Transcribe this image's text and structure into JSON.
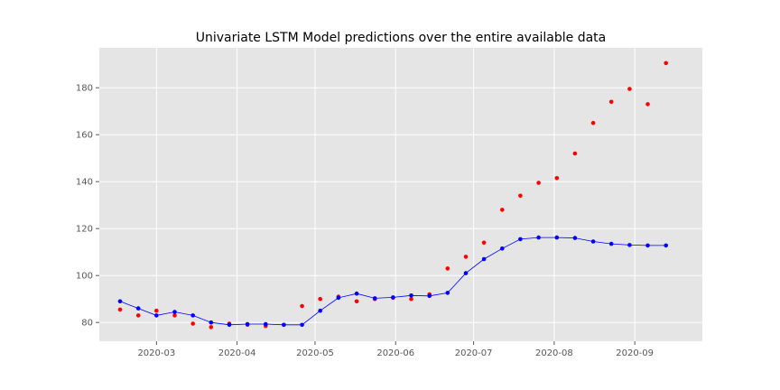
{
  "chart_data": {
    "type": "line",
    "title": "Univariate LSTM Model predictions over the entire available data",
    "xlabel": "",
    "ylabel": "",
    "x_ticks": [
      "2020-03",
      "2020-04",
      "2020-05",
      "2020-06",
      "2020-07",
      "2020-08",
      "2020-09"
    ],
    "y_ticks": [
      80,
      100,
      120,
      140,
      160,
      180
    ],
    "ylim": [
      72,
      197
    ],
    "xlim": [
      "2020-02-08",
      "2020-09-27"
    ],
    "grid": true,
    "series": [
      {
        "style": "points",
        "color": "#ff0000",
        "x": [
          "2020-02-16",
          "2020-02-23",
          "2020-03-01",
          "2020-03-08",
          "2020-03-15",
          "2020-03-22",
          "2020-03-29",
          "2020-04-05",
          "2020-04-12",
          "2020-04-19",
          "2020-04-26",
          "2020-05-03",
          "2020-05-10",
          "2020-05-17",
          "2020-05-24",
          "2020-05-31",
          "2020-06-07",
          "2020-06-14",
          "2020-06-21",
          "2020-06-28",
          "2020-07-05",
          "2020-07-12",
          "2020-07-19",
          "2020-07-26",
          "2020-08-02",
          "2020-08-09",
          "2020-08-16",
          "2020-08-23",
          "2020-08-30",
          "2020-09-06",
          "2020-09-13"
        ],
        "y": [
          85.5,
          83,
          85,
          83,
          79.5,
          78,
          79.5,
          79,
          78.5,
          79,
          87,
          90,
          91,
          89,
          90,
          90.5,
          90,
          92,
          103,
          108,
          114,
          128,
          134,
          139.5,
          141.5,
          152,
          165,
          174,
          179.5,
          173,
          190.5
        ]
      },
      {
        "style": "line+points",
        "color": "#0000ff",
        "x": [
          "2020-02-16",
          "2020-02-23",
          "2020-03-01",
          "2020-03-08",
          "2020-03-15",
          "2020-03-22",
          "2020-03-29",
          "2020-04-05",
          "2020-04-12",
          "2020-04-19",
          "2020-04-26",
          "2020-05-03",
          "2020-05-10",
          "2020-05-17",
          "2020-05-24",
          "2020-05-31",
          "2020-06-07",
          "2020-06-14",
          "2020-06-21",
          "2020-06-28",
          "2020-07-05",
          "2020-07-12",
          "2020-07-19",
          "2020-07-26",
          "2020-08-02",
          "2020-08-09",
          "2020-08-16",
          "2020-08-23",
          "2020-08-30",
          "2020-09-06",
          "2020-09-13"
        ],
        "y": [
          89,
          86,
          83,
          84.5,
          83,
          80,
          79,
          79.3,
          79.3,
          79,
          79,
          85,
          90.5,
          92.3,
          90.3,
          90.7,
          91.5,
          91.3,
          92.6,
          101,
          107,
          111.5,
          115.5,
          116.2,
          116.2,
          116,
          114.5,
          113.5,
          113,
          112.8,
          112.8
        ]
      }
    ]
  }
}
